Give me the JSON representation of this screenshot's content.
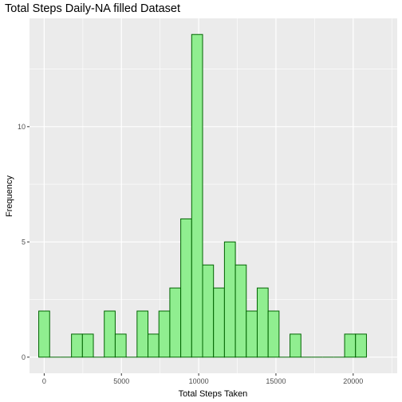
{
  "chart_data": {
    "type": "bar",
    "subtype": "histogram",
    "title": "Total Steps Daily-NA filled Dataset",
    "xlabel": "Total Steps Taken",
    "ylabel": "Frequency",
    "bin_width": 707.1,
    "bins_start": 0,
    "values": [
      2,
      0,
      0,
      1,
      1,
      0,
      2,
      1,
      0,
      2,
      1,
      2,
      3,
      6,
      14,
      4,
      3,
      5,
      4,
      2,
      3,
      2,
      0,
      1,
      0,
      0,
      0,
      0,
      1,
      1
    ],
    "xlim": [
      -950,
      22850
    ],
    "ylim": [
      -0.7,
      14.7
    ],
    "x_ticks": [
      0,
      5000,
      10000,
      15000,
      20000
    ],
    "x_tick_labels": [
      "0",
      "5000",
      "10000",
      "15000",
      "20000"
    ],
    "y_ticks": [
      0,
      5,
      10
    ],
    "y_tick_labels": [
      "0",
      "5",
      "10"
    ],
    "grid": true,
    "colors": {
      "panel": "#ebebeb",
      "grid_major": "#ffffff",
      "bar_fill": "#90ee90",
      "bar_stroke": "#006400",
      "zero_bar_stroke": "#006400"
    }
  }
}
